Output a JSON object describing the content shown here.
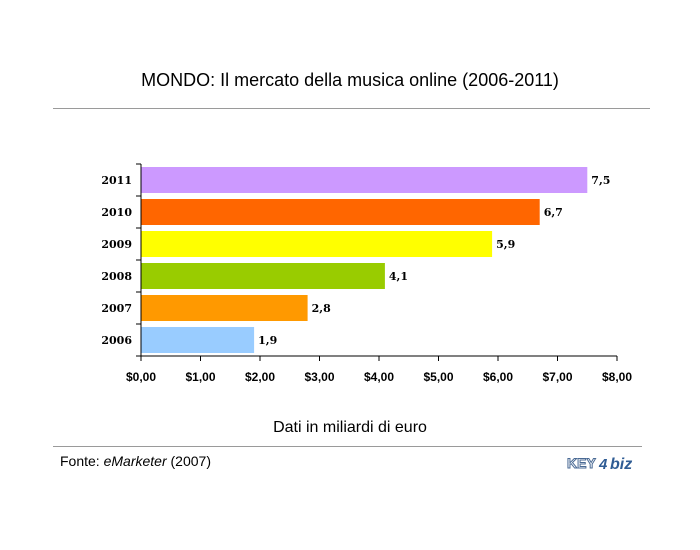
{
  "title": "MONDO: Il mercato della musica online (2006-2011)",
  "footer": {
    "source_prefix": "Fonte: ",
    "source_name": "eMarketer",
    "source_year": " (2007)",
    "logo_text": "KEY4biz"
  },
  "chart_data": {
    "type": "bar",
    "orientation": "horizontal",
    "title": "MONDO: Il mercato della musica online (2006-2011)",
    "xlabel": "Dati in miliardi di euro",
    "ylabel": "",
    "categories": [
      "2011",
      "2010",
      "2009",
      "2008",
      "2007",
      "2006"
    ],
    "values": [
      7.5,
      6.7,
      5.9,
      4.1,
      2.8,
      1.9
    ],
    "value_labels": [
      "7,5",
      "6,7",
      "5,9",
      "4,1",
      "2,8",
      "1,9"
    ],
    "colors": [
      "#cc99ff",
      "#ff6600",
      "#ffff00",
      "#99cc00",
      "#ff9900",
      "#99ccff"
    ],
    "xlim": [
      0,
      8
    ],
    "xticks": [
      0,
      1,
      2,
      3,
      4,
      5,
      6,
      7,
      8
    ],
    "xtick_labels": [
      "$0,00",
      "$1,00",
      "$2,00",
      "$3,00",
      "$4,00",
      "$5,00",
      "$6,00",
      "$7,00",
      "$8,00"
    ],
    "grid": false,
    "legend": "none"
  }
}
